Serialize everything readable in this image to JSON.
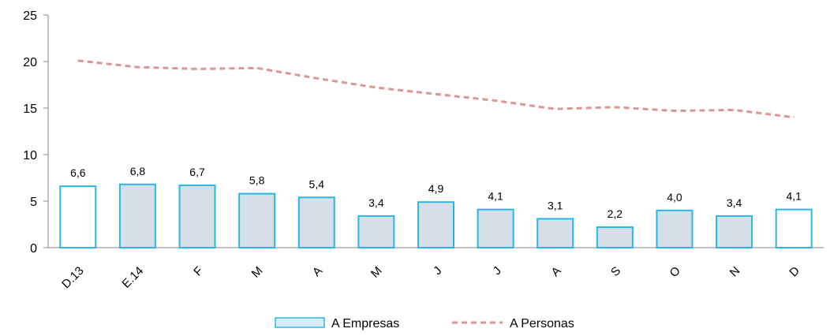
{
  "chart_data": {
    "type": "bar",
    "categories": [
      "D.13",
      "E.14",
      "F",
      "M",
      "A",
      "M",
      "J",
      "J",
      "A",
      "S",
      "O",
      "N",
      "D"
    ],
    "series": [
      {
        "name": "A Empresas",
        "type": "bar",
        "values": [
          6.6,
          6.8,
          6.7,
          5.8,
          5.4,
          3.4,
          4.9,
          4.1,
          3.1,
          2.2,
          4.0,
          3.4,
          4.1
        ],
        "labels": [
          "6,6",
          "6,8",
          "6,7",
          "5,8",
          "5,4",
          "3,4",
          "4,9",
          "4,1",
          "3,1",
          "2,2",
          "4,0",
          "3,4",
          "4,1"
        ],
        "color": "#29B6E8",
        "fill": "#D6DFE8",
        "highlight_fill": "#FFFFFF",
        "highlighted_categories": [
          0,
          12
        ]
      },
      {
        "name": "A Personas",
        "type": "line",
        "style": "dashed",
        "values": [
          20.1,
          19.4,
          19.2,
          19.3,
          18.2,
          17.2,
          16.5,
          15.8,
          14.9,
          15.1,
          14.7,
          14.8,
          14.0
        ],
        "color": "#D99795"
      }
    ],
    "ylim": [
      0,
      25
    ],
    "yticks": [
      0,
      5,
      10,
      15,
      20,
      25
    ],
    "ytick_labels": [
      "0",
      "5",
      "10",
      "15",
      "20",
      "25"
    ],
    "title": "",
    "xlabel": "",
    "ylabel": "",
    "grid": false,
    "legend_position": "bottom"
  }
}
